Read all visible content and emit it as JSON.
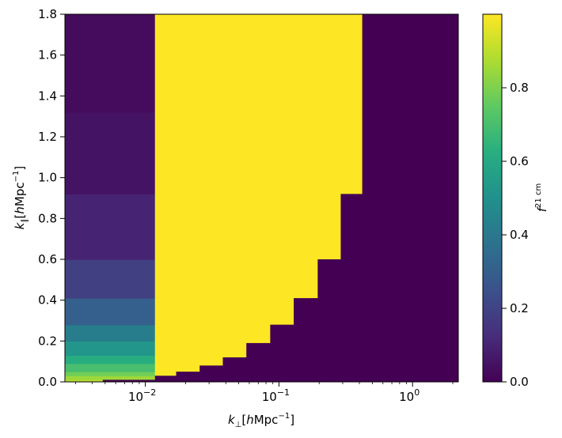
{
  "chart_data": {
    "type": "heatmap",
    "xlabel": "k⊥[hMpc⁻¹]",
    "ylabel": "k∥[hMpc⁻¹]",
    "colorbar_label": "f²¹ᶜᵐ",
    "x_scale": "log",
    "xlim": [
      0.0025,
      2.2
    ],
    "ylim": [
      0.0,
      1.8
    ],
    "x_ticks": [
      {
        "value": 0.01,
        "base": "10",
        "exp": "−2"
      },
      {
        "value": 0.1,
        "base": "10",
        "exp": "−1"
      },
      {
        "value": 1,
        "base": "10",
        "exp": "0"
      }
    ],
    "y_ticks": [
      {
        "value": 0.0,
        "label": "0.0"
      },
      {
        "value": 0.2,
        "label": "0.2"
      },
      {
        "value": 0.4,
        "label": "0.4"
      },
      {
        "value": 0.6,
        "label": "0.6"
      },
      {
        "value": 0.8,
        "label": "0.8"
      },
      {
        "value": 1.0,
        "label": "1.0"
      },
      {
        "value": 1.2,
        "label": "1.2"
      },
      {
        "value": 1.4,
        "label": "1.4"
      },
      {
        "value": 1.6,
        "label": "1.6"
      },
      {
        "value": 1.8,
        "label": "1.8"
      }
    ],
    "colorbar": {
      "range": [
        0.0,
        1.0
      ],
      "ticks": [
        {
          "value": 0.0,
          "label": "0.0"
        },
        {
          "value": 0.2,
          "label": "0.2"
        },
        {
          "value": 0.4,
          "label": "0.4"
        },
        {
          "value": 0.6,
          "label": "0.6"
        },
        {
          "value": 0.8,
          "label": "0.8"
        }
      ]
    },
    "colormap": "viridis",
    "cells": [
      {
        "x0": 0.0025,
        "x1": 0.0118,
        "y0": 0.0,
        "y1": 0.01,
        "v": 0.9
      },
      {
        "x0": 0.0025,
        "x1": 0.0118,
        "y0": 0.01,
        "y1": 0.03,
        "v": 0.85
      },
      {
        "x0": 0.0025,
        "x1": 0.0118,
        "y0": 0.03,
        "y1": 0.05,
        "v": 0.78
      },
      {
        "x0": 0.0025,
        "x1": 0.0118,
        "y0": 0.05,
        "y1": 0.09,
        "v": 0.7
      },
      {
        "x0": 0.0025,
        "x1": 0.0118,
        "y0": 0.09,
        "y1": 0.13,
        "v": 0.62
      },
      {
        "x0": 0.0025,
        "x1": 0.0118,
        "y0": 0.13,
        "y1": 0.2,
        "v": 0.52
      },
      {
        "x0": 0.0025,
        "x1": 0.0118,
        "y0": 0.2,
        "y1": 0.28,
        "v": 0.42
      },
      {
        "x0": 0.0025,
        "x1": 0.0118,
        "y0": 0.28,
        "y1": 0.41,
        "v": 0.3
      },
      {
        "x0": 0.0025,
        "x1": 0.0118,
        "y0": 0.41,
        "y1": 0.6,
        "v": 0.19
      },
      {
        "x0": 0.0025,
        "x1": 0.0118,
        "y0": 0.6,
        "y1": 0.92,
        "v": 0.1
      },
      {
        "x0": 0.0025,
        "x1": 0.0118,
        "y0": 0.92,
        "y1": 1.32,
        "v": 0.05
      },
      {
        "x0": 0.0025,
        "x1": 0.0118,
        "y0": 1.32,
        "y1": 1.8,
        "v": 0.03
      },
      {
        "x0": 0.0118,
        "x1": 0.42,
        "y0": 0.0,
        "y1": 1.8,
        "v": 1.0
      },
      {
        "x0": 0.0048,
        "x1": 0.0118,
        "y0": 0.0,
        "y1": 0.01,
        "v": 0.0
      },
      {
        "x0": 0.0118,
        "x1": 0.017,
        "y0": 0.0,
        "y1": 0.03,
        "v": 0.0
      },
      {
        "x0": 0.017,
        "x1": 0.0255,
        "y0": 0.0,
        "y1": 0.05,
        "v": 0.0
      },
      {
        "x0": 0.0255,
        "x1": 0.038,
        "y0": 0.0,
        "y1": 0.08,
        "v": 0.0
      },
      {
        "x0": 0.038,
        "x1": 0.057,
        "y0": 0.0,
        "y1": 0.12,
        "v": 0.0
      },
      {
        "x0": 0.057,
        "x1": 0.086,
        "y0": 0.0,
        "y1": 0.19,
        "v": 0.0
      },
      {
        "x0": 0.086,
        "x1": 0.129,
        "y0": 0.0,
        "y1": 0.28,
        "v": 0.0
      },
      {
        "x0": 0.129,
        "x1": 0.195,
        "y0": 0.0,
        "y1": 0.41,
        "v": 0.0
      },
      {
        "x0": 0.195,
        "x1": 0.29,
        "y0": 0.0,
        "y1": 0.6,
        "v": 0.0
      },
      {
        "x0": 0.29,
        "x1": 0.42,
        "y0": 0.0,
        "y1": 0.92,
        "v": 0.0
      },
      {
        "x0": 0.42,
        "x1": 2.2,
        "y0": 0.0,
        "y1": 1.8,
        "v": 0.0
      }
    ]
  }
}
